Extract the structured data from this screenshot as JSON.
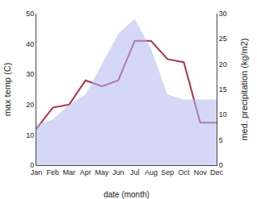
{
  "chart_data": {
    "type": "line",
    "categories": [
      "Jan",
      "Feb",
      "Mar",
      "Apr",
      "May",
      "Jun",
      "Jul",
      "Aug",
      "Sep",
      "Oct",
      "Nov",
      "Dec"
    ],
    "series": [
      {
        "type": "area",
        "axis": "y2",
        "color": "#b0b8ee",
        "values": [
          8,
          9,
          12,
          14,
          20,
          26,
          29,
          23,
          14,
          13,
          13,
          13
        ]
      },
      {
        "type": "line",
        "color": "#aa3344",
        "values": [
          12,
          19,
          20,
          28,
          26,
          28,
          41,
          41,
          35,
          34,
          14,
          14
        ]
      }
    ],
    "xlabel": "date (month)",
    "ylabel": "max temp (C)",
    "y2label": "med. precipitation (kg/m2)",
    "ylim": [
      0,
      50
    ],
    "yticks": [
      0,
      10,
      20,
      30,
      40,
      50
    ],
    "y2lim": [
      0,
      30
    ],
    "y2ticks": [
      0,
      5,
      10,
      15,
      20,
      25,
      30
    ],
    "grid": false
  }
}
